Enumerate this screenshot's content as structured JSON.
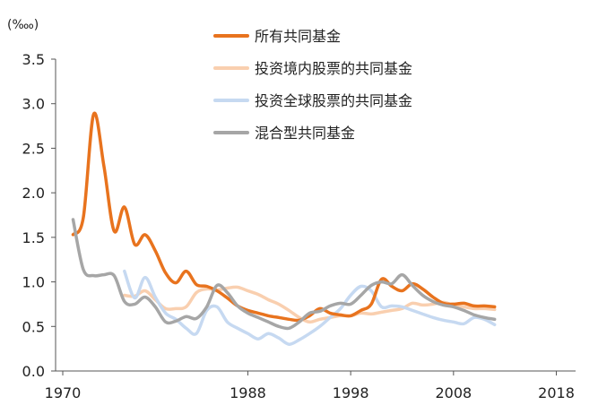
{
  "chart_data": {
    "type": "line",
    "unit_label": "(‱)",
    "xlabel": "",
    "ylabel": "",
    "xlim": [
      1970,
      2019
    ],
    "ylim": [
      0,
      3.5
    ],
    "x_ticks": [
      1970,
      1988,
      1998,
      2008,
      2018
    ],
    "y_ticks": [
      0.0,
      0.5,
      1.0,
      1.5,
      2.0,
      2.5,
      3.0,
      3.5
    ],
    "y_tick_labels": [
      "0.0",
      "0.5",
      "1.0",
      "1.5",
      "2.0",
      "2.5",
      "3.0",
      "3.5"
    ],
    "grid": false,
    "legend_position": "top-right",
    "series": [
      {
        "name": "所有共同基金",
        "color": "#E8731E",
        "points": [
          [
            1971,
            1.53
          ],
          [
            1972,
            1.72
          ],
          [
            1973,
            2.88
          ],
          [
            1974,
            2.3
          ],
          [
            1975,
            1.57
          ],
          [
            1976,
            1.84
          ],
          [
            1977,
            1.42
          ],
          [
            1978,
            1.53
          ],
          [
            1979,
            1.35
          ],
          [
            1980,
            1.1
          ],
          [
            1981,
            0.99
          ],
          [
            1982,
            1.12
          ],
          [
            1983,
            0.97
          ],
          [
            1984,
            0.95
          ],
          [
            1985,
            0.9
          ],
          [
            1986,
            0.82
          ],
          [
            1987,
            0.73
          ],
          [
            1988,
            0.68
          ],
          [
            1989,
            0.65
          ],
          [
            1990,
            0.62
          ],
          [
            1991,
            0.6
          ],
          [
            1992,
            0.58
          ],
          [
            1993,
            0.57
          ],
          [
            1994,
            0.62
          ],
          [
            1995,
            0.7
          ],
          [
            1996,
            0.65
          ],
          [
            1997,
            0.63
          ],
          [
            1998,
            0.62
          ],
          [
            1999,
            0.68
          ],
          [
            2000,
            0.75
          ],
          [
            2001,
            1.03
          ],
          [
            2002,
            0.95
          ],
          [
            2003,
            0.9
          ],
          [
            2004,
            0.98
          ],
          [
            2005,
            0.92
          ],
          [
            2006,
            0.83
          ],
          [
            2007,
            0.76
          ],
          [
            2008,
            0.75
          ],
          [
            2009,
            0.76
          ],
          [
            2010,
            0.73
          ],
          [
            2011,
            0.73
          ],
          [
            2012,
            0.72
          ]
        ]
      },
      {
        "name": "投资境内股票的共同基金",
        "color": "#F9CFAF",
        "points": [
          [
            1976,
            0.85
          ],
          [
            1977,
            0.84
          ],
          [
            1978,
            0.9
          ],
          [
            1979,
            0.8
          ],
          [
            1980,
            0.7
          ],
          [
            1981,
            0.7
          ],
          [
            1982,
            0.72
          ],
          [
            1983,
            0.88
          ],
          [
            1984,
            0.92
          ],
          [
            1985,
            0.91
          ],
          [
            1986,
            0.93
          ],
          [
            1987,
            0.94
          ],
          [
            1988,
            0.9
          ],
          [
            1989,
            0.86
          ],
          [
            1990,
            0.8
          ],
          [
            1991,
            0.75
          ],
          [
            1992,
            0.68
          ],
          [
            1993,
            0.6
          ],
          [
            1994,
            0.55
          ],
          [
            1995,
            0.58
          ],
          [
            1996,
            0.6
          ],
          [
            1997,
            0.62
          ],
          [
            1998,
            0.62
          ],
          [
            1999,
            0.65
          ],
          [
            2000,
            0.64
          ],
          [
            2001,
            0.66
          ],
          [
            2002,
            0.68
          ],
          [
            2003,
            0.7
          ],
          [
            2004,
            0.76
          ],
          [
            2005,
            0.74
          ],
          [
            2006,
            0.75
          ],
          [
            2007,
            0.77
          ],
          [
            2008,
            0.74
          ],
          [
            2009,
            0.72
          ],
          [
            2010,
            0.7
          ],
          [
            2011,
            0.7
          ],
          [
            2012,
            0.69
          ]
        ]
      },
      {
        "name": "投资全球股票的共同基金",
        "color": "#C6D9F1",
        "points": [
          [
            1976,
            1.12
          ],
          [
            1977,
            0.82
          ],
          [
            1978,
            1.05
          ],
          [
            1979,
            0.83
          ],
          [
            1980,
            0.65
          ],
          [
            1981,
            0.58
          ],
          [
            1982,
            0.48
          ],
          [
            1983,
            0.42
          ],
          [
            1984,
            0.68
          ],
          [
            1985,
            0.72
          ],
          [
            1986,
            0.55
          ],
          [
            1987,
            0.48
          ],
          [
            1988,
            0.42
          ],
          [
            1989,
            0.36
          ],
          [
            1990,
            0.42
          ],
          [
            1991,
            0.37
          ],
          [
            1992,
            0.3
          ],
          [
            1993,
            0.35
          ],
          [
            1994,
            0.42
          ],
          [
            1995,
            0.5
          ],
          [
            1996,
            0.6
          ],
          [
            1997,
            0.7
          ],
          [
            1998,
            0.85
          ],
          [
            1999,
            0.95
          ],
          [
            2000,
            0.9
          ],
          [
            2001,
            0.72
          ],
          [
            2002,
            0.73
          ],
          [
            2003,
            0.72
          ],
          [
            2004,
            0.68
          ],
          [
            2005,
            0.64
          ],
          [
            2006,
            0.6
          ],
          [
            2007,
            0.57
          ],
          [
            2008,
            0.55
          ],
          [
            2009,
            0.53
          ],
          [
            2010,
            0.6
          ],
          [
            2011,
            0.58
          ],
          [
            2012,
            0.52
          ]
        ]
      },
      {
        "name": "混合型共同基金",
        "color": "#A6A6A6",
        "points": [
          [
            1971,
            1.7
          ],
          [
            1972,
            1.14
          ],
          [
            1973,
            1.07
          ],
          [
            1974,
            1.08
          ],
          [
            1975,
            1.07
          ],
          [
            1976,
            0.78
          ],
          [
            1977,
            0.75
          ],
          [
            1978,
            0.83
          ],
          [
            1979,
            0.72
          ],
          [
            1980,
            0.55
          ],
          [
            1981,
            0.56
          ],
          [
            1982,
            0.61
          ],
          [
            1983,
            0.59
          ],
          [
            1984,
            0.72
          ],
          [
            1985,
            0.96
          ],
          [
            1986,
            0.88
          ],
          [
            1987,
            0.73
          ],
          [
            1988,
            0.65
          ],
          [
            1989,
            0.6
          ],
          [
            1990,
            0.55
          ],
          [
            1991,
            0.5
          ],
          [
            1992,
            0.48
          ],
          [
            1993,
            0.55
          ],
          [
            1994,
            0.65
          ],
          [
            1995,
            0.67
          ],
          [
            1996,
            0.73
          ],
          [
            1997,
            0.76
          ],
          [
            1998,
            0.75
          ],
          [
            1999,
            0.85
          ],
          [
            2000,
            0.96
          ],
          [
            2001,
            1.0
          ],
          [
            2002,
            0.98
          ],
          [
            2003,
            1.08
          ],
          [
            2004,
            0.96
          ],
          [
            2005,
            0.85
          ],
          [
            2006,
            0.78
          ],
          [
            2007,
            0.74
          ],
          [
            2008,
            0.72
          ],
          [
            2009,
            0.68
          ],
          [
            2010,
            0.63
          ],
          [
            2011,
            0.6
          ],
          [
            2012,
            0.58
          ]
        ]
      }
    ]
  }
}
